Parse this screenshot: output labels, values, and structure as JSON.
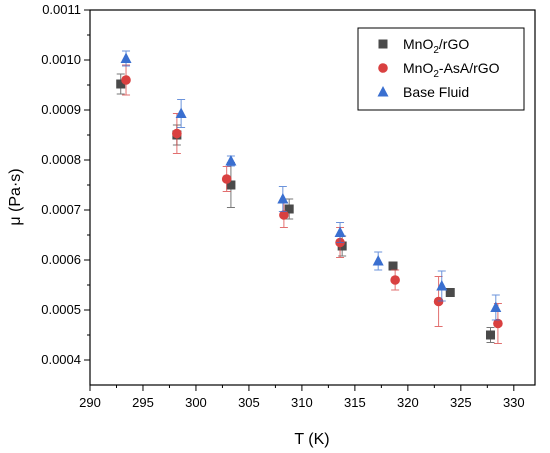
{
  "chart_data": {
    "type": "scatter",
    "xlabel": "T (K)",
    "ylabel": "μ (Pa·s)",
    "xlim": [
      290,
      332
    ],
    "ylim": [
      0.00035,
      0.0011
    ],
    "xticks": [
      "290",
      "295",
      "300",
      "305",
      "310",
      "315",
      "320",
      "325",
      "330"
    ],
    "yticks": [
      "0.0004",
      "0.0005",
      "0.0006",
      "0.0007",
      "0.0008",
      "0.0009",
      "0.0010",
      "0.0011"
    ],
    "legend_position": "top-right",
    "series": [
      {
        "name": "MnO2/rGO",
        "legend_parts": {
          "pre": "MnO",
          "sub": "2",
          "post": "/rGO"
        },
        "marker": "square",
        "color": "#4a4a4a",
        "points": [
          {
            "x": 292.9,
            "y": 0.000952,
            "err": 2e-05
          },
          {
            "x": 298.2,
            "y": 0.00085,
            "err": 2e-05
          },
          {
            "x": 303.3,
            "y": 0.00075,
            "err": 4.5e-05
          },
          {
            "x": 308.8,
            "y": 0.000702,
            "err": 2e-05
          },
          {
            "x": 313.8,
            "y": 0.000628,
            "err": 2e-05
          },
          {
            "x": 318.6,
            "y": 0.000588,
            "err": 0.0
          },
          {
            "x": 324.0,
            "y": 0.000535,
            "err": 0.0
          },
          {
            "x": 327.8,
            "y": 0.00045,
            "err": 1.5e-05
          }
        ]
      },
      {
        "name": "MnO2-AsA/rGO",
        "legend_parts": {
          "pre": "MnO",
          "sub": "2",
          "post": "-AsA/rGO"
        },
        "marker": "circle",
        "color": "#d94040",
        "points": [
          {
            "x": 293.4,
            "y": 0.00096,
            "err": 3e-05
          },
          {
            "x": 298.2,
            "y": 0.000853,
            "err": 4e-05
          },
          {
            "x": 302.9,
            "y": 0.000762,
            "err": 2.5e-05
          },
          {
            "x": 308.3,
            "y": 0.00069,
            "err": 2.5e-05
          },
          {
            "x": 313.6,
            "y": 0.000635,
            "err": 3e-05
          },
          {
            "x": 318.8,
            "y": 0.00056,
            "err": 2e-05
          },
          {
            "x": 322.9,
            "y": 0.000517,
            "err": 5e-05
          },
          {
            "x": 328.5,
            "y": 0.000473,
            "err": 4e-05
          }
        ]
      },
      {
        "name": "Base Fluid",
        "legend_parts": {
          "pre": "Base Fluid",
          "sub": "",
          "post": ""
        },
        "marker": "triangle",
        "color": "#3a6fd0",
        "points": [
          {
            "x": 293.4,
            "y": 0.001003,
            "err": 1.5e-05
          },
          {
            "x": 298.6,
            "y": 0.000893,
            "err": 2.8e-05
          },
          {
            "x": 303.3,
            "y": 0.000798,
            "err": 1e-05
          },
          {
            "x": 308.2,
            "y": 0.000722,
            "err": 2.5e-05
          },
          {
            "x": 313.6,
            "y": 0.000655,
            "err": 2e-05
          },
          {
            "x": 317.2,
            "y": 0.000598,
            "err": 1.8e-05
          },
          {
            "x": 323.2,
            "y": 0.000548,
            "err": 3e-05
          },
          {
            "x": 328.3,
            "y": 0.000505,
            "err": 2.5e-05
          }
        ]
      }
    ]
  }
}
